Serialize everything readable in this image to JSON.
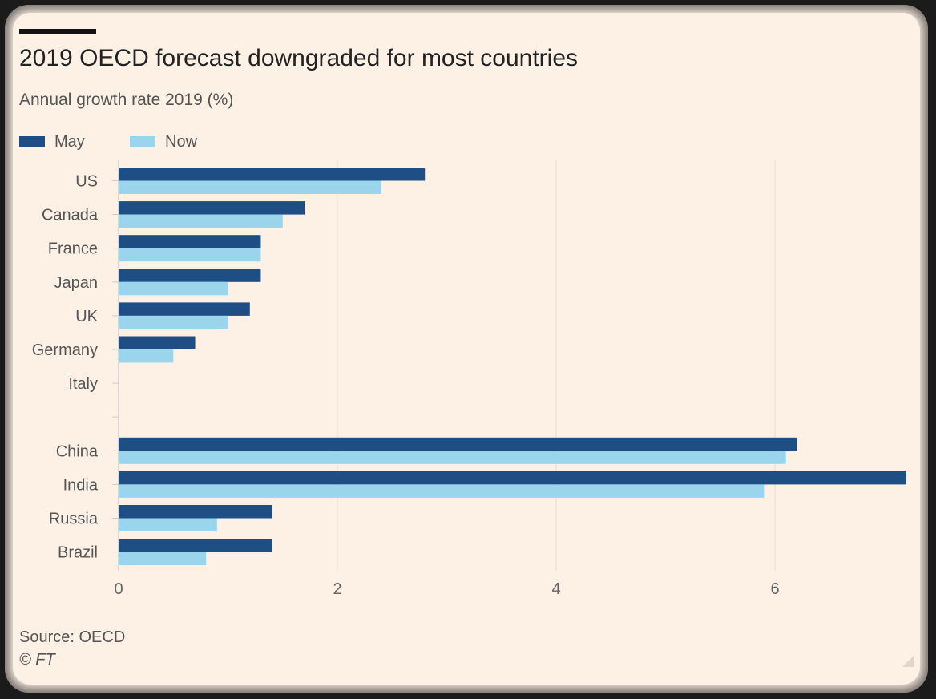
{
  "header": {
    "title": "2019 OECD forecast downgraded for most countries",
    "subtitle": "Annual growth rate 2019 (%)"
  },
  "legend": {
    "items": [
      {
        "label": "May",
        "color": "#1f4e85"
      },
      {
        "label": "Now",
        "color": "#9ad5ec"
      }
    ]
  },
  "footer": {
    "source": "Source: OECD",
    "credit": "© FT"
  },
  "chart_data": {
    "type": "bar",
    "orientation": "horizontal",
    "categories": [
      "US",
      "Canada",
      "France",
      "Japan",
      "UK",
      "Germany",
      "Italy",
      "",
      "China",
      "India",
      "Russia",
      "Brazil"
    ],
    "series": [
      {
        "name": "May",
        "color": "#1f4e85",
        "values": [
          2.8,
          1.7,
          1.3,
          1.3,
          1.2,
          0.7,
          0.0,
          null,
          6.2,
          7.2,
          1.4,
          1.4
        ]
      },
      {
        "name": "Now",
        "color": "#9ad5ec",
        "values": [
          2.4,
          1.5,
          1.3,
          1.0,
          1.0,
          0.5,
          0.0,
          null,
          6.1,
          5.9,
          0.9,
          0.8
        ]
      }
    ],
    "xlim": [
      0,
      7.2
    ],
    "xticks": [
      0,
      2,
      4,
      6
    ],
    "grid": true,
    "legend_position": "top-left",
    "title": "2019 OECD forecast downgraded for most countries",
    "ylabel": "",
    "xlabel": ""
  }
}
